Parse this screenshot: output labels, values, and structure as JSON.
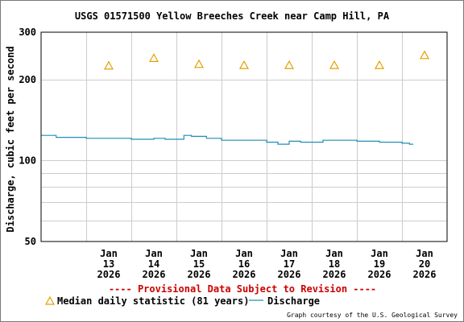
{
  "chart_data": {
    "type": "line",
    "title": "USGS 01571500 Yellow Breeches Creek near Camp Hill, PA",
    "ylabel": "Discharge, cubic feet per second",
    "xlabel": "",
    "y_scale": "log",
    "ylim": [
      50,
      300
    ],
    "y_ticks": [
      "300",
      "200",
      "100",
      "50"
    ],
    "y_tick_values": [
      300,
      200,
      100,
      50
    ],
    "y_minor_values": [
      60,
      70,
      80,
      90
    ],
    "x_range": [
      "2026-01-12",
      "2026-01-21"
    ],
    "x_ticks": [
      {
        "date": "2026-01-13",
        "lines": [
          "Jan",
          "13",
          "2026"
        ]
      },
      {
        "date": "2026-01-14",
        "lines": [
          "Jan",
          "14",
          "2026"
        ]
      },
      {
        "date": "2026-01-15",
        "lines": [
          "Jan",
          "15",
          "2026"
        ]
      },
      {
        "date": "2026-01-16",
        "lines": [
          "Jan",
          "16",
          "2026"
        ]
      },
      {
        "date": "2026-01-17",
        "lines": [
          "Jan",
          "17",
          "2026"
        ]
      },
      {
        "date": "2026-01-18",
        "lines": [
          "Jan",
          "18",
          "2026"
        ]
      },
      {
        "date": "2026-01-19",
        "lines": [
          "Jan",
          "19",
          "2026"
        ]
      },
      {
        "date": "2026-01-20",
        "lines": [
          "Jan",
          "20",
          "2026"
        ]
      }
    ],
    "grid": true,
    "series": [
      {
        "name": "Median daily statistic (81 years)",
        "kind": "marker",
        "color": "#e69f00",
        "points": [
          {
            "x": "2026-01-13 12:00",
            "y": 225
          },
          {
            "x": "2026-01-14 12:00",
            "y": 240
          },
          {
            "x": "2026-01-15 12:00",
            "y": 228
          },
          {
            "x": "2026-01-16 12:00",
            "y": 226
          },
          {
            "x": "2026-01-17 12:00",
            "y": 226
          },
          {
            "x": "2026-01-18 12:00",
            "y": 226
          },
          {
            "x": "2026-01-19 12:00",
            "y": 226
          },
          {
            "x": "2026-01-20 12:00",
            "y": 246
          }
        ]
      },
      {
        "name": "Discharge",
        "kind": "line",
        "color": "#1f8fb5",
        "points": [
          {
            "x": "2026-01-12 00:00",
            "y": 124
          },
          {
            "x": "2026-01-12 04:00",
            "y": 124
          },
          {
            "x": "2026-01-12 08:00",
            "y": 122
          },
          {
            "x": "2026-01-13 00:00",
            "y": 121
          },
          {
            "x": "2026-01-13 12:00",
            "y": 121
          },
          {
            "x": "2026-01-14 00:00",
            "y": 120
          },
          {
            "x": "2026-01-14 12:00",
            "y": 121
          },
          {
            "x": "2026-01-14 18:00",
            "y": 120
          },
          {
            "x": "2026-01-15 04:00",
            "y": 124
          },
          {
            "x": "2026-01-15 08:00",
            "y": 123
          },
          {
            "x": "2026-01-15 16:00",
            "y": 121
          },
          {
            "x": "2026-01-16 00:00",
            "y": 119
          },
          {
            "x": "2026-01-16 12:00",
            "y": 119
          },
          {
            "x": "2026-01-17 00:00",
            "y": 117
          },
          {
            "x": "2026-01-17 06:00",
            "y": 115
          },
          {
            "x": "2026-01-17 12:00",
            "y": 118
          },
          {
            "x": "2026-01-17 18:00",
            "y": 117
          },
          {
            "x": "2026-01-18 00:00",
            "y": 117
          },
          {
            "x": "2026-01-18 06:00",
            "y": 119
          },
          {
            "x": "2026-01-18 18:00",
            "y": 119
          },
          {
            "x": "2026-01-19 00:00",
            "y": 118
          },
          {
            "x": "2026-01-19 12:00",
            "y": 117
          },
          {
            "x": "2026-01-20 00:00",
            "y": 116
          },
          {
            "x": "2026-01-20 04:00",
            "y": 115
          },
          {
            "x": "2026-01-20 06:00",
            "y": 115
          }
        ]
      }
    ],
    "provisional_note": "---- Provisional Data Subject to Revision ----",
    "credit": "Graph courtesy of the U.S. Geological Survey"
  }
}
